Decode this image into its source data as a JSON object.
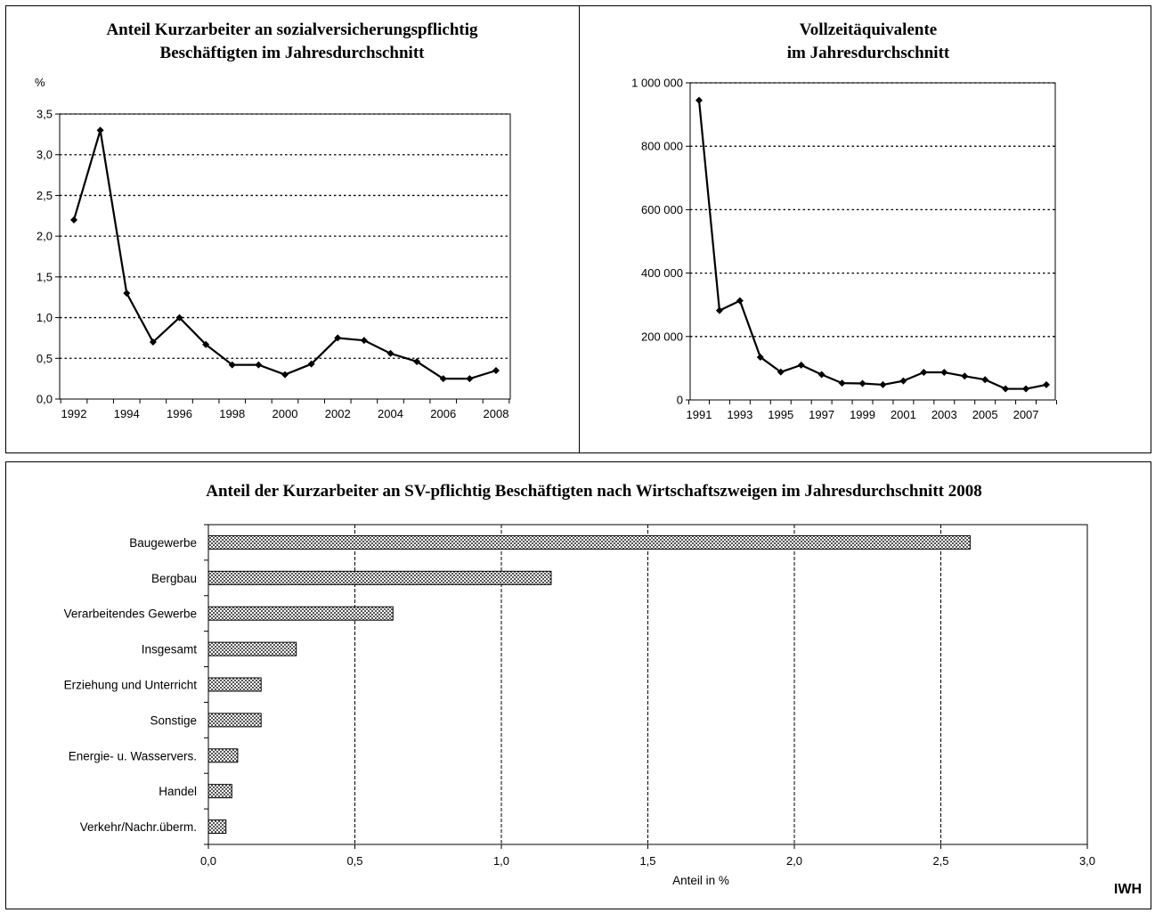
{
  "chart_data": [
    {
      "type": "line",
      "title": [
        "Anteil Kurzarbeiter an sozialversicherungspflichtig",
        "Beschäftigten im Jahresdurchschnitt"
      ],
      "ylabel": "%",
      "x": [
        1992,
        1993,
        1994,
        1995,
        1996,
        1997,
        1998,
        1999,
        2000,
        2001,
        2002,
        2003,
        2004,
        2005,
        2006,
        2007,
        2008
      ],
      "values": [
        2.2,
        3.3,
        1.3,
        0.7,
        1.0,
        0.67,
        0.42,
        0.42,
        0.3,
        0.43,
        0.75,
        0.72,
        0.56,
        0.46,
        0.25,
        0.25,
        0.35
      ],
      "xticks": [
        1992,
        1994,
        1996,
        1998,
        2000,
        2002,
        2004,
        2006,
        2008
      ],
      "yticks": [
        "0,0",
        "0,5",
        "1,0",
        "1,5",
        "2,0",
        "2,5",
        "3,0",
        "3,5"
      ],
      "ylim": [
        0,
        3.5
      ],
      "grid": "horizontal dotted"
    },
    {
      "type": "line",
      "title": [
        "Vollzeitäquivalente",
        "im Jahresdurchschnitt"
      ],
      "x": [
        1991,
        1992,
        1993,
        1994,
        1995,
        1996,
        1997,
        1998,
        1999,
        2000,
        2001,
        2002,
        2003,
        2004,
        2005,
        2006,
        2007,
        2008
      ],
      "values": [
        945000,
        282000,
        313000,
        135000,
        88000,
        110000,
        80000,
        53000,
        52000,
        48000,
        60000,
        87000,
        87000,
        75000,
        64000,
        35000,
        35000,
        48000
      ],
      "xticks": [
        1991,
        1993,
        1995,
        1997,
        1999,
        2001,
        2003,
        2005,
        2007
      ],
      "yticks": [
        "0",
        "200 000",
        "400 000",
        "600 000",
        "800 000",
        "1 000 000"
      ],
      "ylim": [
        0,
        1000000
      ],
      "grid": "horizontal dotted"
    },
    {
      "type": "bar",
      "orientation": "horizontal",
      "title": "Anteil der Kurzarbeiter an SV-pflichtig Beschäftigten nach Wirtschaftszweigen im Jahresdurchschnitt 2008",
      "xlabel": "Anteil in %",
      "categories": [
        "Baugewerbe",
        "Bergbau",
        "Verarbeitendes Gewerbe",
        "Insgesamt",
        "Erziehung und Unterricht",
        "Sonstige",
        "Energie- u. Wasservers.",
        "Handel",
        "Verkehr/Nachr.überm."
      ],
      "values": [
        2.6,
        1.17,
        0.63,
        0.3,
        0.18,
        0.18,
        0.1,
        0.08,
        0.06
      ],
      "xticks": [
        "0,0",
        "0,5",
        "1,0",
        "1,5",
        "2,0",
        "2,5",
        "3,0"
      ],
      "xlim": [
        0,
        3.0
      ],
      "grid": "vertical dashed"
    }
  ],
  "brand": "IWH",
  "colors": {
    "line": "#000000",
    "bar_fill": "#9a9a9a",
    "frame": "#000000"
  }
}
